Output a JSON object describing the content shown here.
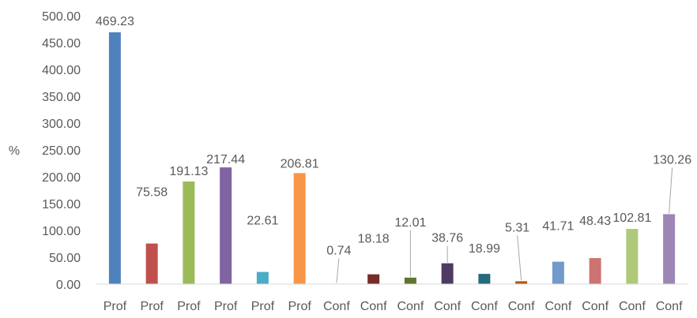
{
  "chart_data": {
    "type": "bar",
    "ylabel": "%",
    "ylim": [
      0,
      500
    ],
    "yticks": [
      "0.00",
      "50.00",
      "100.00",
      "150.00",
      "200.00",
      "250.00",
      "300.00",
      "350.00",
      "400.00",
      "450.00",
      "500.00"
    ],
    "grid": false,
    "legend": "none",
    "categories": [
      "Prof",
      "Prof",
      "Prof",
      "Prof",
      "Prof",
      "Prof",
      "Conf",
      "Conf",
      "Conf",
      "Conf",
      "Conf",
      "Conf",
      "Conf",
      "Conf",
      "Conf",
      "Conf"
    ],
    "values": [
      469.23,
      75.58,
      191.13,
      217.44,
      22.61,
      206.81,
      0.74,
      18.18,
      12.01,
      38.76,
      18.99,
      5.31,
      41.71,
      48.43,
      102.81,
      130.26
    ],
    "value_labels": [
      "469.23",
      "75.58",
      "191.13",
      "217.44",
      "22.61",
      "206.81",
      "0.74",
      "18.18",
      "12.01",
      "38.76",
      "18.99",
      "5.31",
      "41.71",
      "48.43",
      "102.81",
      "130.26"
    ],
    "colors": [
      "#4f81bd",
      "#c0504d",
      "#9bbb59",
      "#8064a2",
      "#4bacc6",
      "#f79646",
      "#2c4d75",
      "#772c2a",
      "#5f7530",
      "#4d3b62",
      "#276a7c",
      "#b65708",
      "#729aca",
      "#cd7371",
      "#afc97a",
      "#9c86b6"
    ]
  }
}
